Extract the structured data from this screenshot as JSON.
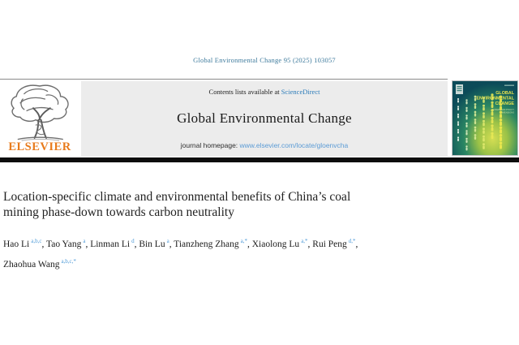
{
  "citation": {
    "text": "Global Environmental Change 95 (2025) 103057"
  },
  "header": {
    "contents_prefix": "Contents lists available at ",
    "contents_link": "ScienceDirect",
    "journal_title": "Global Environmental Change",
    "homepage_prefix": "journal homepage: ",
    "homepage_url": "www.elsevier.com/locate/gloenvcha"
  },
  "elsevier": {
    "wordmark": "ELSEVIER"
  },
  "cover": {
    "title_line1": "GLOBAL",
    "title_line2": "ENVIRONMENTAL",
    "title_line3": "CHANGE",
    "subtitle_line1": "HUMAN AND POLICY",
    "subtitle_line2": "DIMENSIONS"
  },
  "article": {
    "title_line1": "Location-specific climate and environmental benefits of China’s coal",
    "title_line2": "mining phase-down towards carbon neutrality"
  },
  "authors": [
    {
      "name": "Hao Li",
      "sup": "a,b,c",
      "sep": ", "
    },
    {
      "name": "Tao Yang",
      "sup": "a",
      "sep": ", "
    },
    {
      "name": "Linman Li",
      "sup": "d",
      "sep": ", "
    },
    {
      "name": "Bin Lu",
      "sup": "a",
      "sep": ", "
    },
    {
      "name": "Tianzheng Zhang",
      "sup": "a,*",
      "sep": ", "
    },
    {
      "name": "Xiaolong Lu",
      "sup": "a,*",
      "sep": ", "
    },
    {
      "name": "Rui Peng",
      "sup": "d,*",
      "sep": ","
    },
    {
      "name": "Zhaohua Wang",
      "sup": "a,b,c,*",
      "sep": ""
    }
  ],
  "colors": {
    "citation_blue": "#3d7a9c",
    "sciencedirect_link": "#2b7bb9",
    "homepage_link": "#5b9bd5",
    "affiliation_sup_blue": "#4f9bd8",
    "elsevier_orange": "#e87b1c",
    "header_box_gray": "#ececec",
    "rule_black": "#0d0d0d",
    "cover_teal": "#0c5360",
    "cover_green_glow": "#d9e24a"
  }
}
